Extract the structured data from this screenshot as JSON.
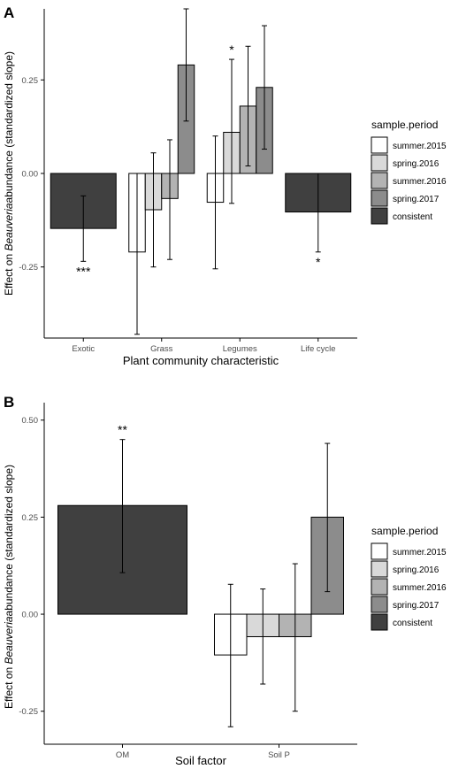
{
  "colors": {
    "summer.2015": "#ffffff",
    "spring.2016": "#d9d9d9",
    "summer.2016": "#b3b3b3",
    "spring.2017": "#8c8c8c",
    "consistent": "#404040",
    "axis": "#000000",
    "text": "#4d4d4d"
  },
  "chart_data": [
    {
      "type": "bar",
      "panel_label": "A",
      "title": "",
      "xlabel": "Plant community characteristic",
      "ylabel_prefix": "Effect on ",
      "ylabel_italic": "Beauveria",
      "ylabel_suffix": "abundance (standardized slope)",
      "ylim": [
        -0.44,
        0.44
      ],
      "yticks": [
        -0.25,
        0.0,
        0.25
      ],
      "ytick_labels": [
        "-0.25",
        "0.00",
        "0.25"
      ],
      "categories": [
        "Exotic",
        "Grass",
        "Legumes",
        "Life cycle"
      ],
      "grid": false,
      "legend": {
        "position": "right",
        "title": "sample.period",
        "entries": [
          "summer.2015",
          "spring.2016",
          "summer.2016",
          "spring.2017",
          "consistent"
        ]
      },
      "groups": [
        {
          "category": "Exotic",
          "bars": [
            {
              "period": "consistent",
              "value": -0.147,
              "lower": -0.235,
              "upper": -0.06,
              "star": "***"
            }
          ]
        },
        {
          "category": "Grass",
          "bars": [
            {
              "period": "summer.2015",
              "value": -0.21,
              "lower": -0.43,
              "upper": 0.0
            },
            {
              "period": "spring.2016",
              "value": -0.097,
              "lower": -0.25,
              "upper": 0.055
            },
            {
              "period": "summer.2016",
              "value": -0.067,
              "lower": -0.23,
              "upper": 0.09
            },
            {
              "period": "spring.2017",
              "value": 0.29,
              "lower": 0.14,
              "upper": 0.44
            }
          ]
        },
        {
          "category": "Legumes",
          "bars": [
            {
              "period": "summer.2015",
              "value": -0.077,
              "lower": -0.255,
              "upper": 0.1
            },
            {
              "period": "spring.2016",
              "value": 0.11,
              "lower": -0.08,
              "upper": 0.305,
              "star": "*"
            },
            {
              "period": "summer.2016",
              "value": 0.18,
              "lower": 0.02,
              "upper": 0.34
            },
            {
              "period": "spring.2017",
              "value": 0.23,
              "lower": 0.065,
              "upper": 0.395
            }
          ]
        },
        {
          "category": "Life cycle",
          "bars": [
            {
              "period": "consistent",
              "value": -0.103,
              "lower": -0.21,
              "upper": 0.0,
              "star": "*"
            }
          ]
        }
      ]
    },
    {
      "type": "bar",
      "panel_label": "B",
      "title": "",
      "xlabel": "Soil factor",
      "ylabel_prefix": "Effect on ",
      "ylabel_italic": "Beauveria",
      "ylabel_suffix": "abundance (standardized slope)",
      "ylim": [
        -0.335,
        0.545
      ],
      "yticks": [
        -0.25,
        0.0,
        0.25,
        0.5
      ],
      "ytick_labels": [
        "-0.25",
        "0.00",
        "0.25",
        "0.50"
      ],
      "categories": [
        "OM",
        "Soil P"
      ],
      "grid": false,
      "legend": {
        "position": "right",
        "title": "sample.period",
        "entries": [
          "summer.2015",
          "spring.2016",
          "summer.2016",
          "spring.2017",
          "consistent"
        ]
      },
      "groups": [
        {
          "category": "OM",
          "bars": [
            {
              "period": "consistent",
              "value": 0.28,
              "lower": 0.107,
              "upper": 0.45,
              "star": "**"
            }
          ]
        },
        {
          "category": "Soil P",
          "bars": [
            {
              "period": "summer.2015",
              "value": -0.105,
              "lower": -0.29,
              "upper": 0.077
            },
            {
              "period": "spring.2016",
              "value": -0.058,
              "lower": -0.18,
              "upper": 0.065
            },
            {
              "period": "summer.2016",
              "value": -0.058,
              "lower": -0.25,
              "upper": 0.13
            },
            {
              "period": "spring.2017",
              "value": 0.25,
              "lower": 0.058,
              "upper": 0.44
            }
          ]
        }
      ]
    }
  ]
}
